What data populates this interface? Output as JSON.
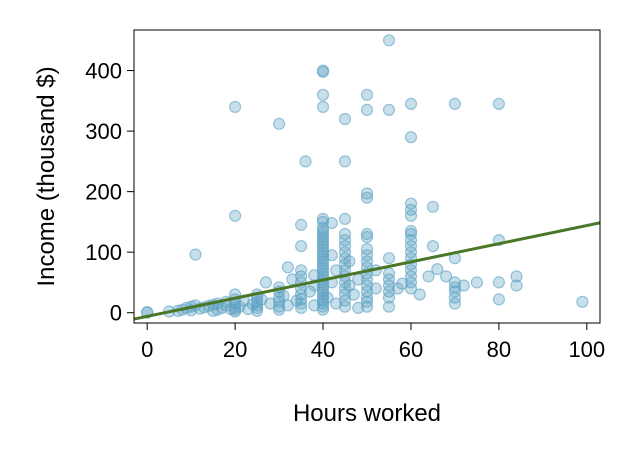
{
  "chart_data": {
    "type": "scatter",
    "xlabel": "Hours worked",
    "ylabel": "Income (thousand $)",
    "xlim": [
      -3,
      103
    ],
    "ylim": [
      -17,
      467
    ],
    "x_ticks": [
      0,
      20,
      40,
      60,
      80,
      100
    ],
    "y_ticks": [
      0,
      100,
      200,
      300,
      400
    ],
    "grid": false,
    "colors": {
      "points": "#5fa2c3",
      "fit_line": "#4a7726"
    },
    "fit_line": {
      "intercept": -6,
      "slope": 1.5
    },
    "points": [
      [
        0,
        0
      ],
      [
        0,
        1
      ],
      [
        5,
        2
      ],
      [
        7,
        3
      ],
      [
        8,
        5
      ],
      [
        9,
        8
      ],
      [
        10,
        10
      ],
      [
        10,
        4
      ],
      [
        11,
        12
      ],
      [
        11,
        96
      ],
      [
        12,
        7
      ],
      [
        13,
        9
      ],
      [
        14,
        11
      ],
      [
        15,
        3
      ],
      [
        15,
        13
      ],
      [
        16,
        5
      ],
      [
        16,
        15
      ],
      [
        17,
        8
      ],
      [
        18,
        12
      ],
      [
        18,
        18
      ],
      [
        19,
        6
      ],
      [
        20,
        2
      ],
      [
        20,
        5
      ],
      [
        20,
        9
      ],
      [
        20,
        15
      ],
      [
        20,
        22
      ],
      [
        20,
        30
      ],
      [
        20,
        160
      ],
      [
        20,
        340
      ],
      [
        21,
        10
      ],
      [
        22,
        20
      ],
      [
        23,
        6
      ],
      [
        24,
        14
      ],
      [
        25,
        3
      ],
      [
        25,
        8
      ],
      [
        25,
        12
      ],
      [
        25,
        18
      ],
      [
        25,
        25
      ],
      [
        25,
        30
      ],
      [
        26,
        22
      ],
      [
        27,
        50
      ],
      [
        28,
        15
      ],
      [
        30,
        5
      ],
      [
        30,
        10
      ],
      [
        30,
        18
      ],
      [
        30,
        25
      ],
      [
        30,
        35
      ],
      [
        30,
        42
      ],
      [
        30,
        312
      ],
      [
        31,
        28
      ],
      [
        32,
        12
      ],
      [
        32,
        75
      ],
      [
        33,
        55
      ],
      [
        34,
        20
      ],
      [
        35,
        8
      ],
      [
        35,
        15
      ],
      [
        35,
        22
      ],
      [
        35,
        30
      ],
      [
        35,
        40
      ],
      [
        35,
        50
      ],
      [
        35,
        60
      ],
      [
        35,
        70
      ],
      [
        35,
        110
      ],
      [
        35,
        145
      ],
      [
        36,
        250
      ],
      [
        37,
        35
      ],
      [
        38,
        12
      ],
      [
        38,
        45
      ],
      [
        38,
        62
      ],
      [
        40,
        5
      ],
      [
        40,
        10
      ],
      [
        40,
        15
      ],
      [
        40,
        20
      ],
      [
        40,
        25
      ],
      [
        40,
        30
      ],
      [
        40,
        35
      ],
      [
        40,
        40
      ],
      [
        40,
        45
      ],
      [
        40,
        50
      ],
      [
        40,
        55
      ],
      [
        40,
        60
      ],
      [
        40,
        65
      ],
      [
        40,
        70
      ],
      [
        40,
        75
      ],
      [
        40,
        80
      ],
      [
        40,
        85
      ],
      [
        40,
        90
      ],
      [
        40,
        95
      ],
      [
        40,
        100
      ],
      [
        40,
        105
      ],
      [
        40,
        110
      ],
      [
        40,
        115
      ],
      [
        40,
        120
      ],
      [
        40,
        125
      ],
      [
        40,
        130
      ],
      [
        40,
        135
      ],
      [
        40,
        140
      ],
      [
        40,
        150
      ],
      [
        40,
        155
      ],
      [
        40,
        340
      ],
      [
        40,
        360
      ],
      [
        40,
        398
      ],
      [
        40,
        400
      ],
      [
        41,
        25
      ],
      [
        42,
        50
      ],
      [
        42,
        95
      ],
      [
        42,
        148
      ],
      [
        43,
        15
      ],
      [
        43,
        70
      ],
      [
        45,
        10
      ],
      [
        45,
        20
      ],
      [
        45,
        30
      ],
      [
        45,
        40
      ],
      [
        45,
        50
      ],
      [
        45,
        60
      ],
      [
        45,
        70
      ],
      [
        45,
        80
      ],
      [
        45,
        90
      ],
      [
        45,
        100
      ],
      [
        45,
        110
      ],
      [
        45,
        120
      ],
      [
        45,
        130
      ],
      [
        45,
        155
      ],
      [
        45,
        250
      ],
      [
        45,
        320
      ],
      [
        46,
        45
      ],
      [
        46,
        85
      ],
      [
        47,
        30
      ],
      [
        48,
        8
      ],
      [
        48,
        55
      ],
      [
        50,
        10
      ],
      [
        50,
        18
      ],
      [
        50,
        25
      ],
      [
        50,
        35
      ],
      [
        50,
        45
      ],
      [
        50,
        55
      ],
      [
        50,
        65
      ],
      [
        50,
        75
      ],
      [
        50,
        85
      ],
      [
        50,
        95
      ],
      [
        50,
        105
      ],
      [
        50,
        125
      ],
      [
        50,
        130
      ],
      [
        50,
        190
      ],
      [
        50,
        197
      ],
      [
        50,
        335
      ],
      [
        50,
        360
      ],
      [
        52,
        40
      ],
      [
        52,
        70
      ],
      [
        55,
        10
      ],
      [
        55,
        25
      ],
      [
        55,
        35
      ],
      [
        55,
        45
      ],
      [
        55,
        55
      ],
      [
        55,
        65
      ],
      [
        55,
        90
      ],
      [
        55,
        335
      ],
      [
        55,
        450
      ],
      [
        57,
        40
      ],
      [
        58,
        48
      ],
      [
        60,
        40
      ],
      [
        60,
        50
      ],
      [
        60,
        60
      ],
      [
        60,
        70
      ],
      [
        60,
        80
      ],
      [
        60,
        90
      ],
      [
        60,
        100
      ],
      [
        60,
        110
      ],
      [
        60,
        120
      ],
      [
        60,
        130
      ],
      [
        60,
        135
      ],
      [
        60,
        160
      ],
      [
        60,
        170
      ],
      [
        60,
        180
      ],
      [
        60,
        290
      ],
      [
        60,
        345
      ],
      [
        62,
        30
      ],
      [
        64,
        60
      ],
      [
        65,
        110
      ],
      [
        65,
        175
      ],
      [
        66,
        72
      ],
      [
        68,
        60
      ],
      [
        70,
        15
      ],
      [
        70,
        25
      ],
      [
        70,
        35
      ],
      [
        70,
        42
      ],
      [
        70,
        50
      ],
      [
        70,
        90
      ],
      [
        70,
        345
      ],
      [
        72,
        45
      ],
      [
        75,
        50
      ],
      [
        80,
        22
      ],
      [
        80,
        50
      ],
      [
        80,
        120
      ],
      [
        80,
        345
      ],
      [
        84,
        45
      ],
      [
        84,
        60
      ],
      [
        99,
        18
      ]
    ]
  }
}
